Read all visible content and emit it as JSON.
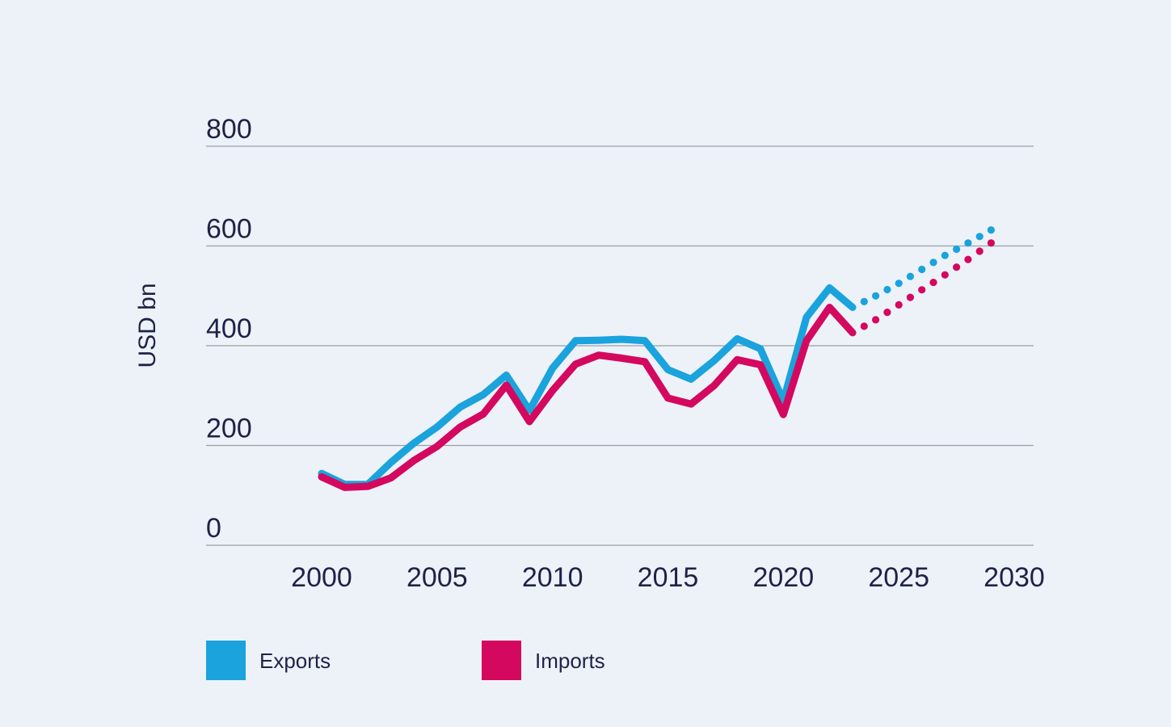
{
  "chart_data": {
    "type": "line",
    "title": "",
    "xlabel": "",
    "ylabel": "USD bn",
    "ylim": [
      0,
      800
    ],
    "xlim": [
      1995,
      2030
    ],
    "yticks": [
      "0",
      "200",
      "400",
      "600",
      "800"
    ],
    "xticks": [
      "2000",
      "2005",
      "2010",
      "2015",
      "2020",
      "2025",
      "2030"
    ],
    "grid": true,
    "legend_position": "bottom-left",
    "series": [
      {
        "name": "Exports",
        "color": "#1aa3dd",
        "x": [
          2000,
          2001,
          2002,
          2003,
          2004,
          2005,
          2006,
          2007,
          2008,
          2009,
          2010,
          2011,
          2012,
          2013,
          2014,
          2015,
          2016,
          2017,
          2018,
          2019,
          2020,
          2021,
          2022,
          2023
        ],
        "values": [
          144,
          122,
          122,
          166,
          205,
          237,
          277,
          302,
          341,
          270,
          355,
          410,
          411,
          413,
          410,
          352,
          333,
          370,
          414,
          394,
          289,
          457,
          516,
          477
        ],
        "forecast": {
          "x": [
            2023,
            2024,
            2025,
            2026,
            2027,
            2028,
            2029
          ],
          "values": [
            477,
            500,
            525,
            553,
            581,
            606,
            632
          ]
        }
      },
      {
        "name": "Imports",
        "color": "#d4085f",
        "x": [
          2000,
          2001,
          2002,
          2003,
          2004,
          2005,
          2006,
          2007,
          2008,
          2009,
          2010,
          2011,
          2012,
          2013,
          2014,
          2015,
          2016,
          2017,
          2018,
          2019,
          2020,
          2021,
          2022,
          2023
        ],
        "values": [
          137,
          116,
          118,
          135,
          170,
          198,
          237,
          263,
          321,
          248,
          310,
          363,
          381,
          375,
          368,
          295,
          283,
          320,
          372,
          362,
          262,
          410,
          477,
          426
        ],
        "forecast": {
          "x": [
            2023,
            2024,
            2025,
            2026,
            2027,
            2028,
            2029
          ],
          "values": [
            426,
            452,
            482,
            512,
            542,
            573,
            606
          ]
        }
      }
    ]
  }
}
